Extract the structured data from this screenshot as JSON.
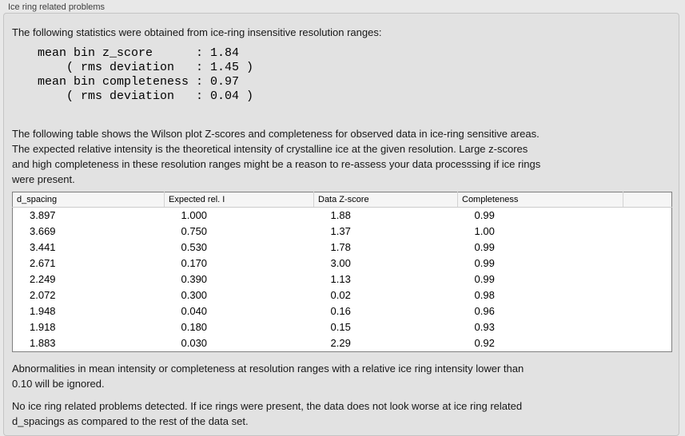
{
  "panel": {
    "title": "Ice ring related problems"
  },
  "intro": "The following statistics were obtained from ice-ring insensitive resolution ranges:",
  "stats_block": "mean bin z_score      : 1.84\n    ( rms deviation   : 1.45 )\nmean bin completeness : 0.97\n    ( rms deviation   : 0.04 )",
  "description": "The following table shows the Wilson plot Z-scores and completeness for observed data in ice-ring sensitive areas.\nThe expected relative intensity is the theoretical intensity of crystalline ice at the given resolution. Large z-scores\nand high completeness in these resolution ranges might be a reason to re-assess your data processsing if ice rings\nwere present.",
  "table": {
    "columns": [
      "d_spacing",
      "Expected rel. I",
      "Data Z-score",
      "Completeness"
    ],
    "rows": [
      [
        "3.897",
        "1.000",
        "1.88",
        "0.99"
      ],
      [
        "3.669",
        "0.750",
        "1.37",
        "1.00"
      ],
      [
        "3.441",
        "0.530",
        "1.78",
        "0.99"
      ],
      [
        "2.671",
        "0.170",
        "3.00",
        "0.99"
      ],
      [
        "2.249",
        "0.390",
        "1.13",
        "0.99"
      ],
      [
        "2.072",
        "0.300",
        "0.02",
        "0.98"
      ],
      [
        "1.948",
        "0.040",
        "0.16",
        "0.96"
      ],
      [
        "1.918",
        "0.180",
        "0.15",
        "0.93"
      ],
      [
        "1.883",
        "0.030",
        "2.29",
        "0.92"
      ]
    ]
  },
  "note": "Abnormalities in mean intensity or completeness at resolution ranges with a relative ice ring intensity lower than\n0.10 will be ignored.",
  "conclusion": "No ice ring related problems detected. If ice rings were present, the data does not look worse at ice ring related\nd_spacings as compared to the rest of the data set.",
  "colors": {
    "page_bg": "#e8e8e8",
    "panel_bg": "#e2e2e2",
    "panel_border": "#c4c4c4",
    "table_border": "#7f7f7f",
    "table_header_bg": "#f5f5f5",
    "table_body_bg": "#ffffff"
  }
}
